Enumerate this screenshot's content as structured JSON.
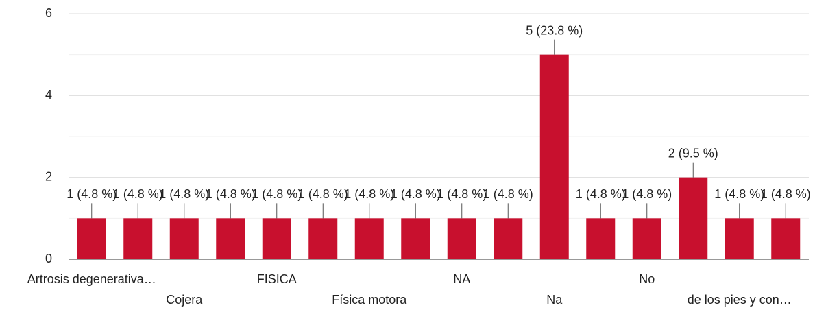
{
  "chart_data": {
    "type": "bar",
    "categories": [
      "Artrosis degenerativa…",
      null,
      "Cojera",
      null,
      "FISICA",
      null,
      "Física motora",
      null,
      "NA",
      null,
      "Na",
      null,
      "No",
      null,
      "de los pies y con…",
      null
    ],
    "values": [
      1,
      1,
      1,
      1,
      1,
      1,
      1,
      1,
      1,
      1,
      5,
      1,
      1,
      2,
      1,
      1
    ],
    "value_labels": [
      "1 (4.8 %)",
      "1 (4.8 %)",
      "1 (4.8 %)",
      "1 (4.8 %)",
      "1 (4.8 %)",
      "1 (4.8 %)",
      "1 (4.8 %)",
      "1 (4.8 %)",
      "1 (4.8 %)",
      "1 (4.8 %)",
      "5 (23.8 %)",
      "1 (4.8 %)",
      "1 (4.8 %)",
      "2 (9.5 %)",
      "1 (4.8 %)",
      "1 (4.8 %)"
    ],
    "color": "#c8102e",
    "ylim": [
      0,
      6
    ],
    "yticks": [
      0,
      2,
      4,
      6
    ],
    "minor_yticks": [
      1,
      3,
      5
    ],
    "grid": true
  }
}
